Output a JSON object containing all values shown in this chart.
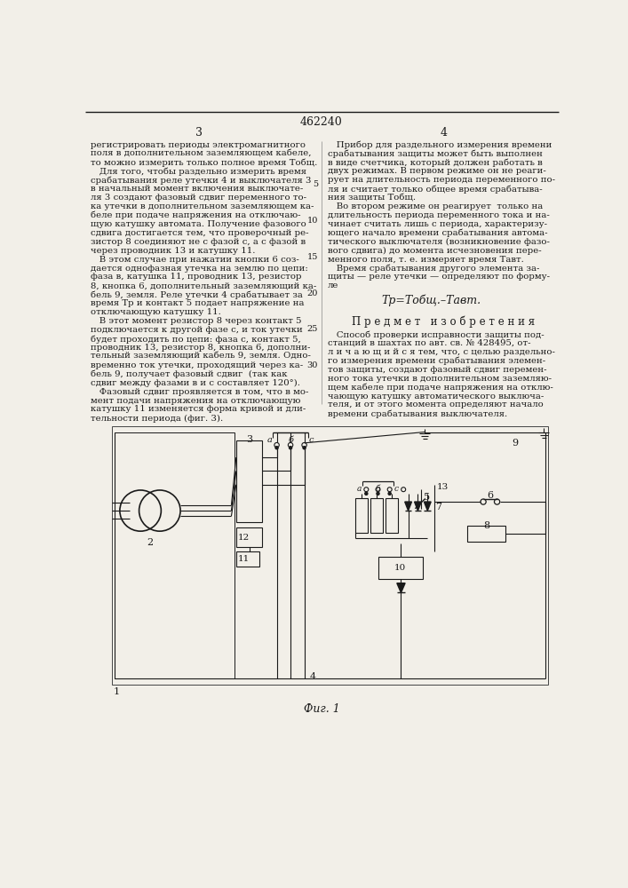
{
  "patent_number": "462240",
  "page_numbers": [
    "3",
    "4"
  ],
  "background_color": "#f2efe8",
  "text_color": "#1a1a1a",
  "col1_text": [
    "регистрировать периоды электромагнитного",
    "поля в дополнительном заземляющем кабеле,",
    "то можно измерить только полное время Тобщ.",
    "   Для того, чтобы раздельно измерить время",
    "срабатывания реле утечки 4 и выключателя 3",
    "в начальный момент включения выключате-",
    "ля 3 создают фазовый сдвиг переменного то-",
    "ка утечки в дополнительном заземляющем ка-",
    "беле при подаче напряжения на отключаю-",
    "щую катушку автомата. Получение фазового",
    "сдвига достигается тем, что проверочный ре-",
    "зистор 8 соединяют не с фазой c, а с фазой в",
    "через проводник 13 и катушку 11.",
    "   В этом случае при нажатии кнопки 6 соз-",
    "дается однофазная утечка на землю по цепи:",
    "фаза в, катушка 11, проводник 13, резистор",
    "8, кнопка 6, дополнительный заземляющий ка-",
    "бель 9, земля. Реле утечки 4 срабатывает за",
    "время Тр и контакт 5 подает напряжение на",
    "отключающую катушку 11.",
    "   В этот момент резистор 8 через контакт 5",
    "подключается к другой фазе с, и ток утечки",
    "будет проходить по цепи: фаза с, контакт 5,",
    "проводник 13, резистор 8, кнопка 6, дополни-",
    "тельный заземляющий кабель 9, земля. Одно-",
    "временно ток утечки, проходящий через ка-",
    "бель 9, получает фазовый сдвиг  (так как",
    "сдвиг между фазами в и с составляет 120°).",
    "   Фазовый сдвиг проявляется в том, что в мо-",
    "мент подачи напряжения на отключающую",
    "катушку 11 изменяется форма кривой и дли-",
    "тельности периода (фиг. 3)."
  ],
  "col2_text": [
    "   Прибор для раздельного измерения времени",
    "срабатывания защиты может быть выполнен",
    "в виде счетчика, который должен работать в",
    "двух режимах. В первом режиме он не реаги-",
    "рует на длительность периода переменного по-",
    "ля и считает только общее время срабатыва-",
    "ния защиты Тобщ.",
    "   Во втором режиме он реагирует  только на",
    "длительность периода переменного тока и на-",
    "чинает считать лишь с периода, характеризу-",
    "ющего начало времени срабатывания автома-",
    "тического выключателя (возникновение фазо-",
    "вого сдвига) до момента исчезновения пере-",
    "менного поля, т. е. измеряет время Тавт.",
    "   Время срабатывания другого элемента за-",
    "щиты — реле утечки — определяют по форму-",
    "ле"
  ],
  "formula": "Тр=Тобщ.–Тавт.",
  "section_title": "П р е д м е т   и з о б р е т е н и я",
  "claim_text": [
    "   Способ проверки исправности защиты под-",
    "станций в шахтах по авт. св. № 428495, от-",
    "л и ч а ю щ и й с я тем, что, с целью раздельно-",
    "го измерения времени срабатывания элемен-",
    "тов защиты, создают фазовый сдвиг перемен-",
    "ного тока утечки в дополнительном заземляю-",
    "щем кабеле при подаче напряжения на отклю-",
    "чающую катушку автоматического выключа-",
    "теля, и от этого момента определяют начало",
    "времени срабатывания выключателя."
  ],
  "fig_caption": "Фиг. 1",
  "line_numbers": [
    "5",
    "10",
    "15",
    "20",
    "25",
    "30"
  ]
}
